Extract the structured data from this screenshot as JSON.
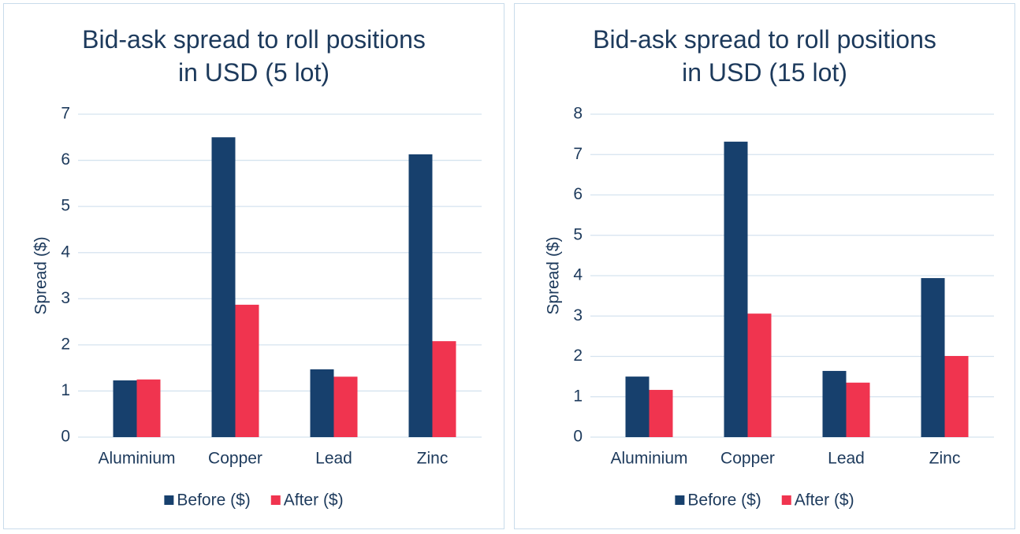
{
  "chart_data": [
    {
      "type": "bar",
      "title": "Bid-ask spread to roll positions in USD (5 lot)",
      "y_label": "Spread ($)",
      "categories": [
        "Aluminium",
        "Copper",
        "Lead",
        "Zinc"
      ],
      "series": [
        {
          "name": "Before ($)",
          "color": "#17406d",
          "values": [
            1.23,
            6.5,
            1.47,
            6.13
          ]
        },
        {
          "name": "After ($)",
          "color": "#f0344f",
          "values": [
            1.25,
            2.87,
            1.31,
            2.08
          ]
        }
      ],
      "ylim": [
        0,
        7
      ],
      "yticks": [
        0,
        1,
        2,
        3,
        4,
        5,
        6,
        7
      ],
      "grid": true,
      "legend": "bottom"
    },
    {
      "type": "bar",
      "title": "Bid-ask spread to roll positions in USD (15 lot)",
      "y_label": "Spread ($)",
      "categories": [
        "Aluminium",
        "Copper",
        "Lead",
        "Zinc"
      ],
      "series": [
        {
          "name": "Before ($)",
          "color": "#17406d",
          "values": [
            1.5,
            7.32,
            1.64,
            3.94
          ]
        },
        {
          "name": "After ($)",
          "color": "#f0344f",
          "values": [
            1.17,
            3.06,
            1.35,
            2.01
          ]
        }
      ],
      "ylim": [
        0,
        8
      ],
      "yticks": [
        0,
        1,
        2,
        3,
        4,
        5,
        6,
        7,
        8
      ],
      "grid": true,
      "legend": "bottom"
    }
  ]
}
